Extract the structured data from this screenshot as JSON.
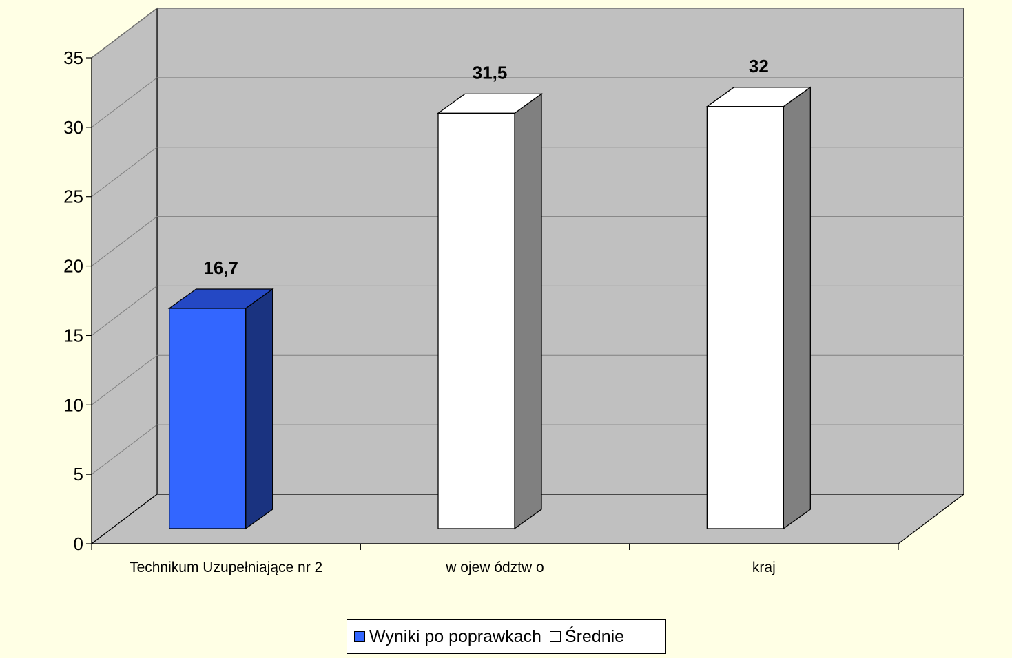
{
  "chart_data": {
    "type": "bar",
    "categories": [
      "Technikum Uzupełniające nr 2",
      "w ojew ództw o",
      "kraj"
    ],
    "series": [
      {
        "name": "Wyniki po poprawkach",
        "color": "#3366FF",
        "side_color": "#1A3380",
        "top_color": "#2448C4",
        "values": [
          16.7,
          null,
          null
        ]
      },
      {
        "name": "Średnie",
        "color": "#FFFFFF",
        "side_color": "#808080",
        "top_color": "#FFFFFF",
        "values": [
          null,
          31.5,
          32
        ]
      }
    ],
    "data_labels": [
      "16,7",
      "31,5",
      "32"
    ],
    "y_ticks": [
      "0",
      "5",
      "10",
      "15",
      "20",
      "25",
      "30",
      "35"
    ],
    "ylim": [
      0,
      35
    ],
    "grid": true,
    "legend_position": "bottom",
    "wall_color": "#C0C0C0"
  }
}
